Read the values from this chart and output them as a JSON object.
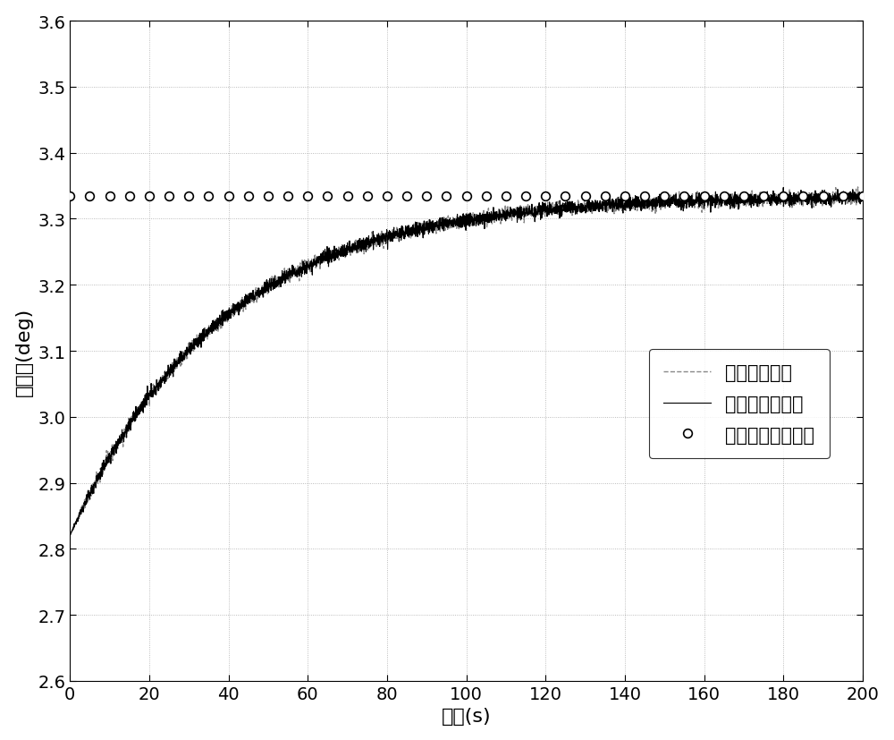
{
  "title": "",
  "xlabel": "时间(s)",
  "ylabel": "升降舐(deg)",
  "xlim": [
    0,
    200
  ],
  "ylim": [
    2.6,
    3.6
  ],
  "xticks": [
    0,
    20,
    40,
    60,
    80,
    100,
    120,
    140,
    160,
    180,
    200
  ],
  "yticks": [
    2.6,
    2.7,
    2.8,
    2.9,
    3.0,
    3.1,
    3.2,
    3.3,
    3.4,
    3.5,
    3.6
  ],
  "steady_state": 3.335,
  "y_start": 2.82,
  "noise_amplitude": 0.005,
  "time_constant": 38,
  "legend_labels": [
    "闭环俳真结果",
    "本方法计算结果",
    "传统方法计算结果"
  ],
  "circle_x_step": 5,
  "dashed_color": "#888888",
  "solid_color": "#000000",
  "circle_color": "#000000",
  "figsize": [
    10.0,
    8.28
  ],
  "dpi": 100,
  "font_size_label": 16,
  "font_size_tick": 14,
  "font_size_legend": 15
}
